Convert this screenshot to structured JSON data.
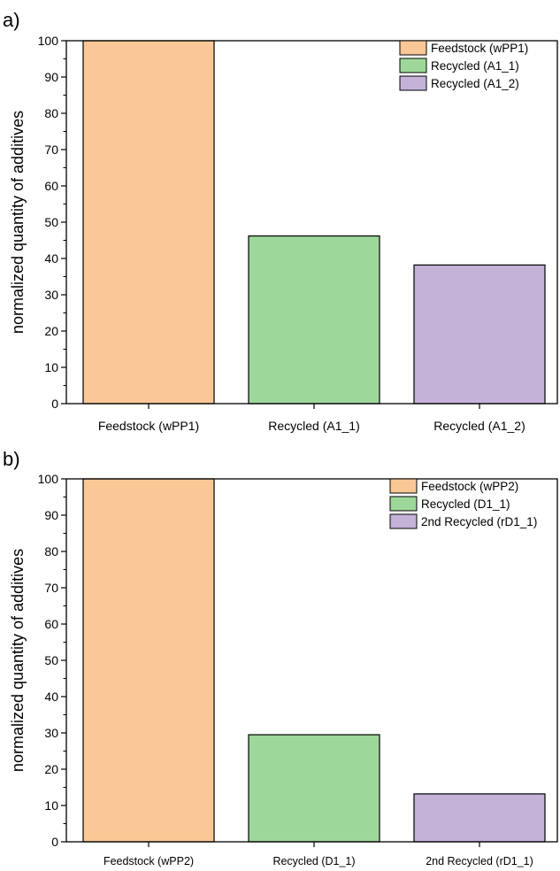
{
  "colors": {
    "feedstock": "#fac896",
    "recycled": "#9ed79a",
    "second": "#c4b2d8",
    "stroke": "#000000"
  },
  "chart_data": [
    {
      "panel_label": "a)",
      "type": "bar",
      "ylabel": "normalized quantity of additives",
      "xlabel": "",
      "ylim": [
        0,
        100
      ],
      "yticks": [
        0,
        10,
        20,
        30,
        40,
        50,
        60,
        70,
        80,
        90,
        100
      ],
      "categories": [
        "Feedstock (wPP1)",
        "Recycled (A1_1)",
        "Recycled (A1_2)"
      ],
      "values": [
        100,
        46.2,
        38.2
      ],
      "bar_colors": [
        "#fac896",
        "#9ed79a",
        "#c4b2d8"
      ],
      "legend": [
        "Feedstock (wPP1)",
        "Recycled (A1_1)",
        "Recycled (A1_2)"
      ],
      "legend_position": "top-right",
      "grid": false
    },
    {
      "panel_label": "b)",
      "type": "bar",
      "ylabel": "normalized quantity of additives",
      "xlabel": "",
      "ylim": [
        0,
        100
      ],
      "yticks": [
        0,
        10,
        20,
        30,
        40,
        50,
        60,
        70,
        80,
        90,
        100
      ],
      "categories": [
        "Feedstock (wPP2)",
        "Recycled (D1_1)",
        "2nd Recycled (rD1_1)"
      ],
      "values": [
        100,
        29.5,
        13.2
      ],
      "bar_colors": [
        "#fac896",
        "#9ed79a",
        "#c4b2d8"
      ],
      "legend": [
        "Feedstock (wPP2)",
        "Recycled (D1_1)",
        "2nd Recycled (rD1_1)"
      ],
      "legend_position": "top-right",
      "grid": false
    }
  ]
}
